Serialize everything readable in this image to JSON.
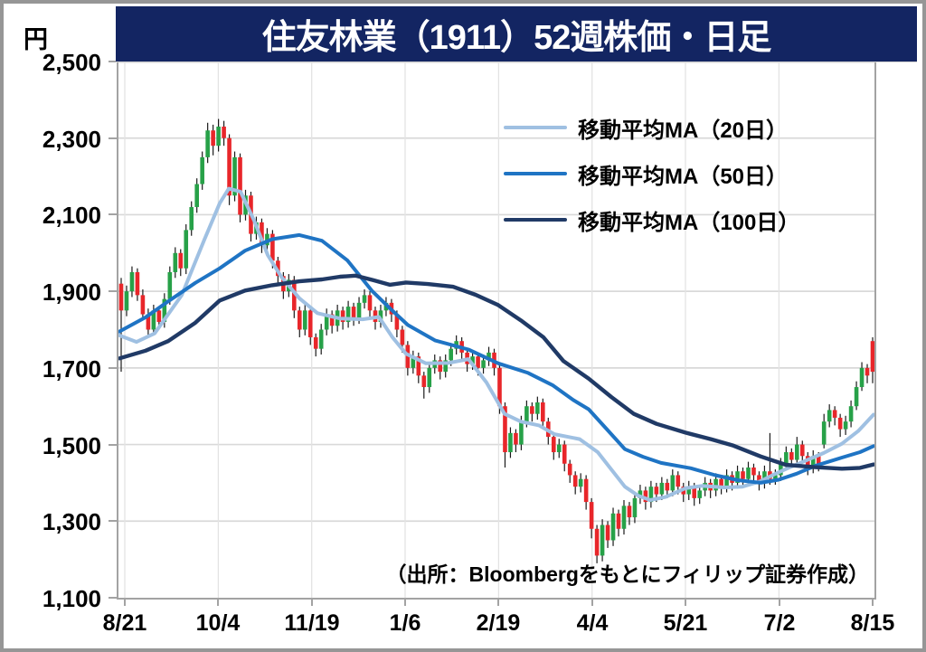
{
  "page": {
    "unit_label": "円"
  },
  "title": {
    "text": "住友林業（1911）52週株価・日足"
  },
  "legend": [
    {
      "label": "移動平均MA（20日）",
      "color": "#9fc0e2"
    },
    {
      "label": "移動平均MA（50日）",
      "color": "#1f74c4"
    },
    {
      "label": "移動平均MA（100日）",
      "color": "#203a66"
    }
  ],
  "source_note": "（出所：Bloombergをもとにフィリップ証券作成）",
  "chart_data": {
    "type": "candlestick",
    "title": "住友林業（1911）52週株価・日足",
    "unit": "円",
    "grid": true,
    "legend_position": "top-right-inside",
    "y_axis": {
      "min": 1100,
      "max": 2500,
      "tick_interval": 200,
      "tick_labels": [
        "2,500",
        "2,300",
        "2,100",
        "1,900",
        "1,700",
        "1,500",
        "1,300",
        "1,100"
      ],
      "tick_prices": [
        2500,
        2300,
        2100,
        1900,
        1700,
        1500,
        1300,
        1100
      ]
    },
    "x_axis": {
      "tick_labels": [
        "8/21",
        "10/4",
        "11/19",
        "1/6",
        "2/19",
        "4/4",
        "5/21",
        "7/2",
        "8/15"
      ]
    },
    "colors": {
      "up_candle": "#27a148",
      "down_candle": "#e8262a",
      "wick": "#1a1a1a",
      "ma20": "#9fc0e2",
      "ma50": "#1f74c4",
      "ma100": "#203a66",
      "gridline": "#d9d9d9",
      "axis": "#a3a3a3",
      "banner": "#132562"
    },
    "candles_ohlc": [
      [
        1920,
        1935,
        1690,
        1850
      ],
      [
        1850,
        1915,
        1835,
        1900
      ],
      [
        1900,
        1965,
        1885,
        1950
      ],
      [
        1950,
        1960,
        1875,
        1890
      ],
      [
        1890,
        1905,
        1825,
        1840
      ],
      [
        1840,
        1855,
        1785,
        1800
      ],
      [
        1800,
        1865,
        1785,
        1850
      ],
      [
        1850,
        1860,
        1800,
        1820
      ],
      [
        1820,
        1895,
        1805,
        1880
      ],
      [
        1880,
        1965,
        1865,
        1950
      ],
      [
        1950,
        2015,
        1935,
        2000
      ],
      [
        2000,
        2010,
        1940,
        1960
      ],
      [
        1960,
        2075,
        1945,
        2060
      ],
      [
        2060,
        2135,
        2045,
        2120
      ],
      [
        2120,
        2195,
        2105,
        2180
      ],
      [
        2180,
        2265,
        2165,
        2250
      ],
      [
        2250,
        2340,
        2235,
        2320
      ],
      [
        2320,
        2335,
        2255,
        2280
      ],
      [
        2280,
        2350,
        2265,
        2330
      ],
      [
        2330,
        2345,
        2280,
        2300
      ],
      [
        2300,
        2310,
        2125,
        2150
      ],
      [
        2150,
        2265,
        2135,
        2250
      ],
      [
        2250,
        2260,
        2080,
        2100
      ],
      [
        2100,
        2165,
        2085,
        2150
      ],
      [
        2150,
        2160,
        2030,
        2050
      ],
      [
        2050,
        2095,
        2035,
        2080
      ],
      [
        2080,
        2090,
        2000,
        2020
      ],
      [
        2020,
        2065,
        2005,
        2050
      ],
      [
        2050,
        2060,
        1960,
        1980
      ],
      [
        1980,
        1990,
        1920,
        1940
      ],
      [
        1940,
        1950,
        1880,
        1900
      ],
      [
        1900,
        1945,
        1885,
        1930
      ],
      [
        1930,
        1940,
        1830,
        1850
      ],
      [
        1850,
        1860,
        1780,
        1800
      ],
      [
        1800,
        1865,
        1785,
        1850
      ],
      [
        1850,
        1860,
        1760,
        1780
      ],
      [
        1780,
        1790,
        1730,
        1750
      ],
      [
        1750,
        1815,
        1735,
        1800
      ],
      [
        1800,
        1855,
        1785,
        1840
      ],
      [
        1840,
        1850,
        1790,
        1810
      ],
      [
        1810,
        1865,
        1795,
        1850
      ],
      [
        1850,
        1860,
        1800,
        1820
      ],
      [
        1820,
        1875,
        1805,
        1860
      ],
      [
        1860,
        1870,
        1810,
        1830
      ],
      [
        1830,
        1885,
        1815,
        1870
      ],
      [
        1870,
        1905,
        1855,
        1890
      ],
      [
        1890,
        1900,
        1830,
        1850
      ],
      [
        1850,
        1860,
        1800,
        1820
      ],
      [
        1820,
        1865,
        1805,
        1850
      ],
      [
        1850,
        1885,
        1835,
        1870
      ],
      [
        1870,
        1880,
        1820,
        1840
      ],
      [
        1840,
        1850,
        1780,
        1800
      ],
      [
        1800,
        1810,
        1740,
        1760
      ],
      [
        1760,
        1770,
        1680,
        1700
      ],
      [
        1700,
        1745,
        1685,
        1730
      ],
      [
        1730,
        1740,
        1660,
        1680
      ],
      [
        1680,
        1690,
        1620,
        1650
      ],
      [
        1650,
        1715,
        1635,
        1700
      ],
      [
        1700,
        1735,
        1685,
        1720
      ],
      [
        1720,
        1730,
        1670,
        1690
      ],
      [
        1690,
        1735,
        1675,
        1720
      ],
      [
        1720,
        1765,
        1705,
        1750
      ],
      [
        1750,
        1785,
        1735,
        1770
      ],
      [
        1770,
        1780,
        1720,
        1740
      ],
      [
        1740,
        1750,
        1690,
        1710
      ],
      [
        1710,
        1745,
        1695,
        1730
      ],
      [
        1730,
        1740,
        1680,
        1700
      ],
      [
        1700,
        1735,
        1685,
        1720
      ],
      [
        1720,
        1755,
        1705,
        1740
      ],
      [
        1740,
        1750,
        1680,
        1700
      ],
      [
        1700,
        1710,
        1580,
        1600
      ],
      [
        1600,
        1610,
        1440,
        1480
      ],
      [
        1480,
        1545,
        1465,
        1530
      ],
      [
        1530,
        1540,
        1480,
        1500
      ],
      [
        1500,
        1575,
        1485,
        1560
      ],
      [
        1560,
        1615,
        1545,
        1600
      ],
      [
        1600,
        1610,
        1560,
        1580
      ],
      [
        1580,
        1625,
        1565,
        1610
      ],
      [
        1610,
        1620,
        1540,
        1560
      ],
      [
        1560,
        1570,
        1500,
        1520
      ],
      [
        1520,
        1530,
        1460,
        1480
      ],
      [
        1480,
        1515,
        1465,
        1500
      ],
      [
        1500,
        1510,
        1430,
        1450
      ],
      [
        1450,
        1460,
        1400,
        1420
      ],
      [
        1420,
        1430,
        1370,
        1390
      ],
      [
        1390,
        1425,
        1375,
        1410
      ],
      [
        1410,
        1420,
        1330,
        1350
      ],
      [
        1350,
        1360,
        1255,
        1280
      ],
      [
        1280,
        1290,
        1190,
        1210
      ],
      [
        1210,
        1305,
        1195,
        1290
      ],
      [
        1290,
        1300,
        1230,
        1250
      ],
      [
        1250,
        1335,
        1235,
        1320
      ],
      [
        1320,
        1330,
        1260,
        1280
      ],
      [
        1280,
        1355,
        1265,
        1340
      ],
      [
        1340,
        1350,
        1290,
        1310
      ],
      [
        1310,
        1375,
        1295,
        1360
      ],
      [
        1360,
        1395,
        1345,
        1380
      ],
      [
        1380,
        1390,
        1330,
        1350
      ],
      [
        1350,
        1405,
        1335,
        1390
      ],
      [
        1390,
        1400,
        1350,
        1370
      ],
      [
        1370,
        1415,
        1355,
        1400
      ],
      [
        1400,
        1410,
        1360,
        1380
      ],
      [
        1380,
        1435,
        1365,
        1420
      ],
      [
        1420,
        1430,
        1370,
        1390
      ],
      [
        1390,
        1400,
        1350,
        1370
      ],
      [
        1370,
        1405,
        1355,
        1390
      ],
      [
        1390,
        1400,
        1340,
        1360
      ],
      [
        1360,
        1395,
        1345,
        1380
      ],
      [
        1380,
        1415,
        1365,
        1400
      ],
      [
        1400,
        1410,
        1360,
        1380
      ],
      [
        1380,
        1425,
        1365,
        1410
      ],
      [
        1410,
        1420,
        1370,
        1390
      ],
      [
        1390,
        1435,
        1375,
        1420
      ],
      [
        1420,
        1430,
        1380,
        1400
      ],
      [
        1400,
        1445,
        1385,
        1430
      ],
      [
        1430,
        1440,
        1390,
        1410
      ],
      [
        1410,
        1455,
        1395,
        1440
      ],
      [
        1440,
        1450,
        1400,
        1420
      ],
      [
        1420,
        1430,
        1380,
        1400
      ],
      [
        1400,
        1445,
        1385,
        1430
      ],
      [
        1430,
        1530,
        1395,
        1410
      ],
      [
        1410,
        1435,
        1395,
        1420
      ],
      [
        1420,
        1465,
        1405,
        1450
      ],
      [
        1450,
        1495,
        1435,
        1480
      ],
      [
        1480,
        1490,
        1440,
        1460
      ],
      [
        1460,
        1520,
        1445,
        1500
      ],
      [
        1500,
        1510,
        1450,
        1470
      ],
      [
        1470,
        1480,
        1420,
        1440
      ],
      [
        1440,
        1485,
        1425,
        1470
      ],
      [
        1470,
        1480,
        1430,
        1450
      ],
      [
        1500,
        1580,
        1490,
        1560
      ],
      [
        1560,
        1605,
        1545,
        1590
      ],
      [
        1590,
        1600,
        1550,
        1570
      ],
      [
        1570,
        1580,
        1520,
        1540
      ],
      [
        1540,
        1575,
        1525,
        1560
      ],
      [
        1560,
        1615,
        1545,
        1600
      ],
      [
        1600,
        1665,
        1590,
        1650
      ],
      [
        1650,
        1715,
        1640,
        1700
      ],
      [
        1700,
        1710,
        1660,
        1680
      ],
      [
        1770,
        1780,
        1660,
        1690
      ]
    ],
    "series": [
      {
        "name": "移動平均MA（20日）",
        "color": "#9fc0e2",
        "points": [
          [
            1,
            1785
          ],
          [
            20,
            1768
          ],
          [
            40,
            1790
          ],
          [
            70,
            1890
          ],
          [
            95,
            2035
          ],
          [
            112,
            2130
          ],
          [
            122,
            2168
          ],
          [
            135,
            2160
          ],
          [
            150,
            2085
          ],
          [
            165,
            1995
          ],
          [
            180,
            1938
          ],
          [
            200,
            1882
          ],
          [
            220,
            1843
          ],
          [
            245,
            1829
          ],
          [
            270,
            1827
          ],
          [
            288,
            1833
          ],
          [
            303,
            1780
          ],
          [
            318,
            1737
          ],
          [
            340,
            1712
          ],
          [
            365,
            1713
          ],
          [
            387,
            1723
          ],
          [
            407,
            1662
          ],
          [
            427,
            1580
          ],
          [
            445,
            1560
          ],
          [
            465,
            1550
          ],
          [
            482,
            1527
          ],
          [
            510,
            1514
          ],
          [
            530,
            1480
          ],
          [
            545,
            1435
          ],
          [
            560,
            1390
          ],
          [
            575,
            1366
          ],
          [
            588,
            1355
          ],
          [
            605,
            1363
          ],
          [
            627,
            1386
          ],
          [
            645,
            1392
          ],
          [
            670,
            1388
          ],
          [
            690,
            1390
          ],
          [
            710,
            1404
          ],
          [
            725,
            1422
          ],
          [
            740,
            1438
          ],
          [
            760,
            1458
          ],
          [
            780,
            1478
          ],
          [
            800,
            1502
          ],
          [
            818,
            1535
          ],
          [
            835,
            1578
          ]
        ]
      },
      {
        "name": "移動平均MA（50日）",
        "color": "#1f74c4",
        "points": [
          [
            1,
            1795
          ],
          [
            30,
            1832
          ],
          [
            55,
            1874
          ],
          [
            85,
            1922
          ],
          [
            112,
            1960
          ],
          [
            140,
            2006
          ],
          [
            170,
            2036
          ],
          [
            200,
            2047
          ],
          [
            225,
            2032
          ],
          [
            253,
            1981
          ],
          [
            280,
            1902
          ],
          [
            300,
            1856
          ],
          [
            320,
            1812
          ],
          [
            350,
            1772
          ],
          [
            387,
            1748
          ],
          [
            420,
            1712
          ],
          [
            453,
            1687
          ],
          [
            480,
            1655
          ],
          [
            503,
            1616
          ],
          [
            520,
            1592
          ],
          [
            540,
            1540
          ],
          [
            560,
            1488
          ],
          [
            580,
            1468
          ],
          [
            600,
            1452
          ],
          [
            633,
            1438
          ],
          [
            660,
            1420
          ],
          [
            685,
            1407
          ],
          [
            710,
            1400
          ],
          [
            730,
            1408
          ],
          [
            750,
            1424
          ],
          [
            770,
            1444
          ],
          [
            800,
            1466
          ],
          [
            820,
            1480
          ],
          [
            835,
            1496
          ]
        ]
      },
      {
        "name": "移動平均MA（100日）",
        "color": "#203a66",
        "points": [
          [
            1,
            1725
          ],
          [
            30,
            1745
          ],
          [
            55,
            1770
          ],
          [
            85,
            1818
          ],
          [
            112,
            1876
          ],
          [
            140,
            1902
          ],
          [
            170,
            1916
          ],
          [
            200,
            1926
          ],
          [
            225,
            1931
          ],
          [
            245,
            1938
          ],
          [
            262,
            1941
          ],
          [
            282,
            1929
          ],
          [
            300,
            1917
          ],
          [
            318,
            1923
          ],
          [
            342,
            1919
          ],
          [
            370,
            1912
          ],
          [
            395,
            1891
          ],
          [
            420,
            1864
          ],
          [
            445,
            1824
          ],
          [
            470,
            1780
          ],
          [
            492,
            1718
          ],
          [
            520,
            1672
          ],
          [
            545,
            1624
          ],
          [
            570,
            1580
          ],
          [
            595,
            1554
          ],
          [
            627,
            1531
          ],
          [
            655,
            1514
          ],
          [
            680,
            1497
          ],
          [
            710,
            1469
          ],
          [
            738,
            1447
          ],
          [
            770,
            1441
          ],
          [
            800,
            1437
          ],
          [
            820,
            1439
          ],
          [
            835,
            1448
          ]
        ]
      }
    ]
  }
}
